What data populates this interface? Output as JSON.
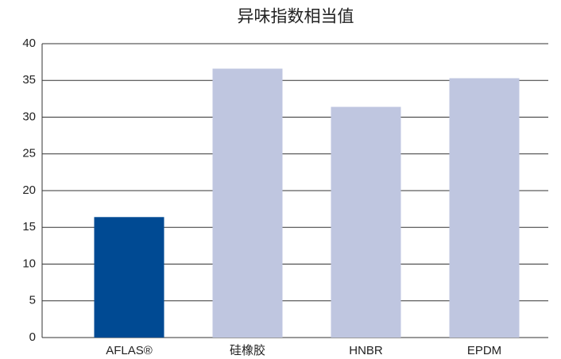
{
  "chart_data": {
    "type": "bar",
    "title": "异味指数相当值",
    "categories": [
      "AFLAS®",
      "硅橡胶",
      "HNBR",
      "EPDM"
    ],
    "values": [
      16.4,
      36.6,
      31.4,
      35.3
    ],
    "colors": [
      "#004a93",
      "#bfc6e0",
      "#bfc6e0",
      "#bfc6e0"
    ],
    "ylim": [
      0,
      40
    ],
    "yticks": [
      0,
      5,
      10,
      15,
      20,
      25,
      30,
      35,
      40
    ],
    "grid": true
  }
}
